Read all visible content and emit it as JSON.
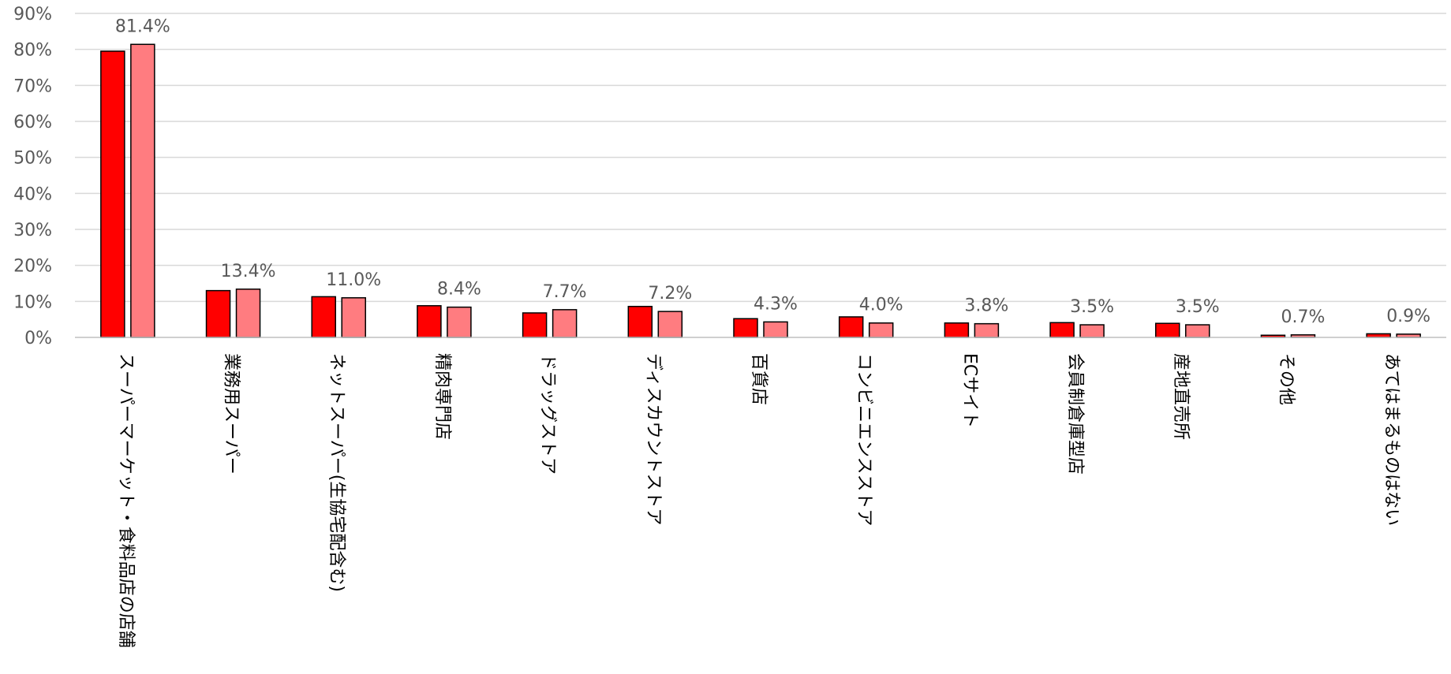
{
  "chart_data": {
    "type": "bar",
    "title": "",
    "xlabel": "",
    "ylabel": "",
    "ylim": [
      0,
      90
    ],
    "ytick_step": 10,
    "ytick_labels": [
      "0%",
      "10%",
      "20%",
      "30%",
      "40%",
      "50%",
      "60%",
      "70%",
      "80%",
      "90%"
    ],
    "grid": true,
    "legend": "none",
    "categories": [
      "スーパーマーケット・食料品店の店舗",
      "業務用スーパー",
      "ネットスーパー(生協宅配含む)",
      "精肉専門店",
      "ドラッグストア",
      "ディスカウントストア",
      "百貨店",
      "コンビニエンスストア",
      "ECサイト",
      "会員制倉庫型店",
      "産地直売所",
      "その他",
      "あてはまるものはない"
    ],
    "series": [
      {
        "color": "#ff0000",
        "values": [
          79.5,
          13.0,
          11.3,
          8.8,
          6.8,
          8.6,
          5.2,
          5.7,
          4.0,
          4.1,
          3.9,
          0.6,
          1.0
        ]
      },
      {
        "color": "#ff7c80",
        "values": [
          81.4,
          13.4,
          11.0,
          8.4,
          7.7,
          7.2,
          4.3,
          4.0,
          3.8,
          3.5,
          3.5,
          0.7,
          0.9
        ],
        "labels": [
          "81.4%",
          "13.4%",
          "11.0%",
          "8.4%",
          "7.7%",
          "7.2%",
          "4.3%",
          "4.0%",
          "3.8%",
          "3.5%",
          "3.5%",
          "0.7%",
          "0.9%"
        ]
      }
    ]
  }
}
